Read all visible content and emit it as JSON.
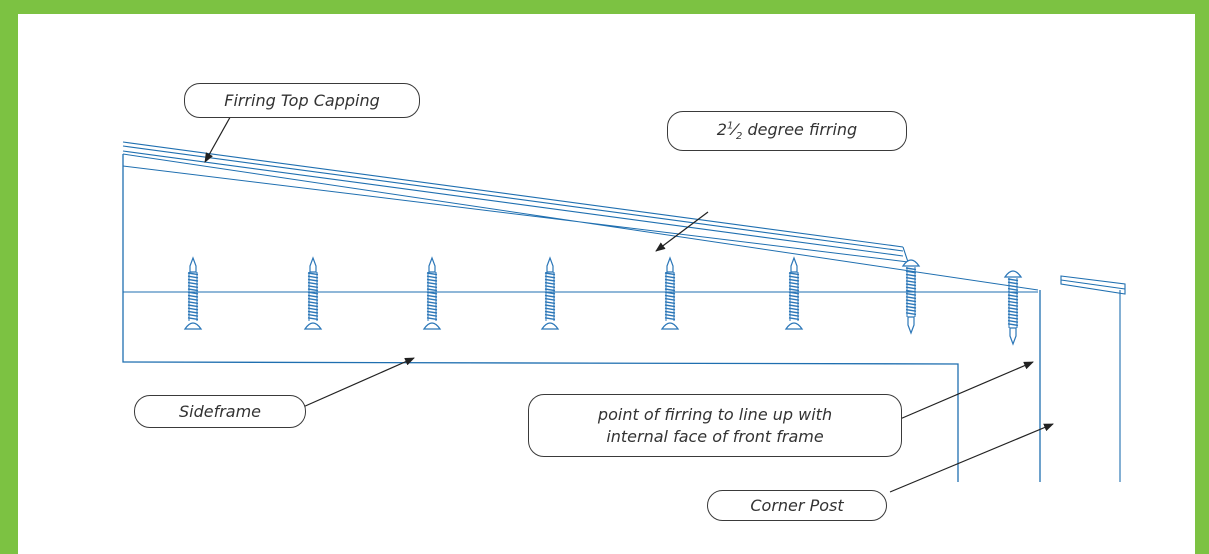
{
  "colors": {
    "border": "#7cc242",
    "line": "#1f6fb0",
    "screw": "#2c77b8",
    "arrow": "#222222",
    "text": "#333333"
  },
  "labels": {
    "firring_top_capping": "Firring Top Capping",
    "degree_firring_whole": "2",
    "degree_firring_num": "1",
    "degree_firring_den": "2",
    "degree_firring_text": "degree firring",
    "sideframe": "Sideframe",
    "point_line1": "point of firring to line up with",
    "point_line2": "internal face of front frame",
    "corner_post": "Corner Post"
  },
  "screws": {
    "count": 8
  }
}
